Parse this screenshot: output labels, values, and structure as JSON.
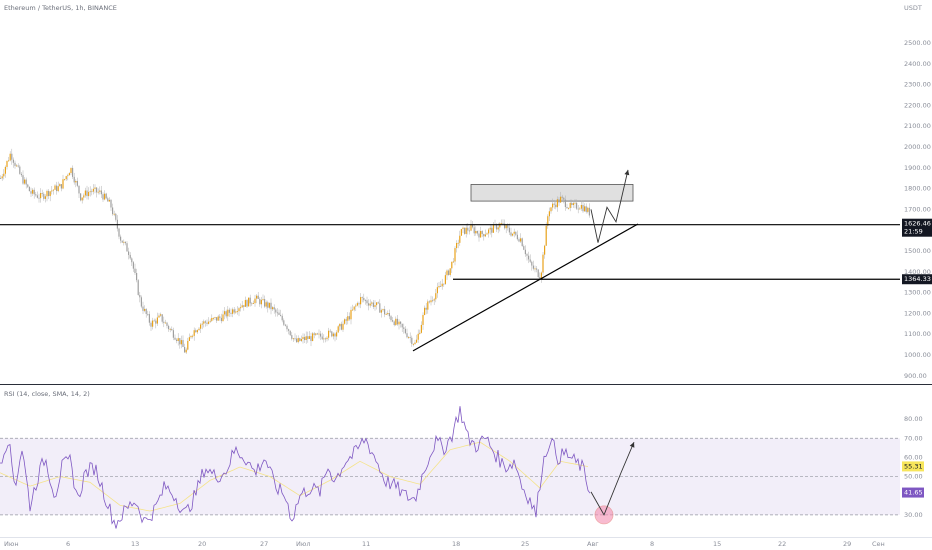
{
  "header": {
    "title": "Ethereum / TetherUS, 1h, BINANCE",
    "currency": "USDT"
  },
  "price_pane": {
    "current_price": "1626.46",
    "countdown": "21:59",
    "support_label": "1364.33"
  },
  "rsi_pane": {
    "title": "RSI (14, close, SMA, 14, 2)",
    "value_rsi": "41.65",
    "value_ma": "55.31"
  },
  "colors": {
    "candle": "#e8a21a",
    "rsi_line": "#7e57c2",
    "rsi_ma": "#f5e38a",
    "rsi_band": "#ede7f6",
    "zone_fill": "#e0e0e0",
    "highlight": "#f48fb1"
  },
  "chart_data": [
    {
      "type": "candlestick",
      "title": "Ethereum / TetherUS, 1h, BINANCE",
      "y_unit": "USDT",
      "ylim": [
        880,
        2620
      ],
      "y_ticks": [
        2500,
        2400,
        2300,
        2200,
        2100,
        2000,
        1900,
        1800,
        1700,
        1600,
        1500,
        1400,
        1300,
        1200,
        1100,
        1000,
        900
      ],
      "y_tick_labels": [
        "2500.00",
        "2400.00",
        "2300.00",
        "2200.00",
        "2100.00",
        "2000.00",
        "1900.00",
        "1800.00",
        "1700.00",
        "1600.00",
        "1500.00",
        "1400.00",
        "1300.00",
        "1200.00",
        "1100.00",
        "1000.00",
        "900.00"
      ],
      "x_tick_labels": [
        "Июн",
        "6",
        "13",
        "20",
        "27",
        "Июл",
        "11",
        "18",
        "25",
        "Авг",
        "8",
        "15",
        "22",
        "29",
        "Сен"
      ],
      "close_path": [
        [
          0,
          1850
        ],
        [
          10,
          1970
        ],
        [
          20,
          1860
        ],
        [
          30,
          1780
        ],
        [
          40,
          1760
        ],
        [
          50,
          1790
        ],
        [
          60,
          1810
        ],
        [
          70,
          1900
        ],
        [
          80,
          1760
        ],
        [
          90,
          1790
        ],
        [
          100,
          1780
        ],
        [
          110,
          1720
        ],
        [
          120,
          1560
        ],
        [
          130,
          1480
        ],
        [
          140,
          1250
        ],
        [
          150,
          1150
        ],
        [
          160,
          1180
        ],
        [
          170,
          1120
        ],
        [
          180,
          1060
        ],
        [
          185,
          1010
        ],
        [
          190,
          1100
        ],
        [
          200,
          1150
        ],
        [
          220,
          1180
        ],
        [
          240,
          1240
        ],
        [
          255,
          1270
        ],
        [
          270,
          1230
        ],
        [
          285,
          1150
        ],
        [
          295,
          1060
        ],
        [
          305,
          1080
        ],
        [
          320,
          1090
        ],
        [
          335,
          1110
        ],
        [
          345,
          1160
        ],
        [
          360,
          1270
        ],
        [
          375,
          1240
        ],
        [
          390,
          1180
        ],
        [
          405,
          1110
        ],
        [
          415,
          1050
        ],
        [
          425,
          1230
        ],
        [
          440,
          1330
        ],
        [
          450,
          1420
        ],
        [
          460,
          1590
        ],
        [
          470,
          1610
        ],
        [
          480,
          1580
        ],
        [
          490,
          1600
        ],
        [
          500,
          1630
        ],
        [
          510,
          1590
        ],
        [
          520,
          1560
        ],
        [
          530,
          1430
        ],
        [
          540,
          1380
        ],
        [
          548,
          1700
        ],
        [
          560,
          1750
        ],
        [
          570,
          1710
        ],
        [
          580,
          1720
        ],
        [
          590,
          1680
        ]
      ],
      "horizontal_levels": [
        {
          "price": 1626.46,
          "label": "1626.46"
        },
        {
          "price": 1364.33,
          "label": "1364.33"
        }
      ],
      "resistance_zone": {
        "x": [
          471,
          633
        ],
        "y": [
          1740,
          1820
        ]
      },
      "trendline": {
        "from": [
          413,
          1020
        ],
        "to": [
          638,
          1630
        ]
      },
      "projection_path": [
        [
          591,
          1700
        ],
        [
          598,
          1540
        ],
        [
          607,
          1710
        ],
        [
          616,
          1640
        ],
        [
          628,
          1890
        ]
      ]
    },
    {
      "type": "line",
      "title": "RSI (14, close, SMA, 14, 2)",
      "ylim": [
        20,
        90
      ],
      "y_ticks": [
        80,
        70,
        60,
        50,
        40,
        30
      ],
      "y_tick_labels": [
        "80.00",
        "70.00",
        "60.00",
        "50.00",
        "40.00",
        "30.00"
      ],
      "bands": [
        70,
        50,
        30
      ],
      "series": [
        {
          "values": [
            [
              0,
              58
            ],
            [
              8,
              70
            ],
            [
              15,
              45
            ],
            [
              22,
              65
            ],
            [
              30,
              35
            ],
            [
              38,
              50
            ],
            [
              45,
              60
            ],
            [
              55,
              40
            ],
            [
              62,
              55
            ],
            [
              70,
              58
            ],
            [
              78,
              38
            ],
            [
              85,
              52
            ],
            [
              95,
              55
            ],
            [
              105,
              40
            ],
            [
              115,
              25
            ],
            [
              125,
              32
            ],
            [
              135,
              38
            ],
            [
              145,
              26
            ],
            [
              155,
              33
            ],
            [
              165,
              45
            ],
            [
              175,
              40
            ],
            [
              185,
              30
            ],
            [
              195,
              40
            ],
            [
              205,
              55
            ],
            [
              215,
              50
            ],
            [
              225,
              52
            ],
            [
              235,
              64
            ],
            [
              245,
              60
            ],
            [
              255,
              52
            ],
            [
              265,
              60
            ],
            [
              275,
              45
            ],
            [
              285,
              40
            ],
            [
              292,
              28
            ],
            [
              300,
              40
            ],
            [
              310,
              44
            ],
            [
              320,
              42
            ],
            [
              328,
              55
            ],
            [
              335,
              48
            ],
            [
              345,
              58
            ],
            [
              355,
              62
            ],
            [
              365,
              70
            ],
            [
              375,
              60
            ],
            [
              385,
              48
            ],
            [
              395,
              45
            ],
            [
              405,
              40
            ],
            [
              415,
              38
            ],
            [
              425,
              55
            ],
            [
              435,
              68
            ],
            [
              445,
              65
            ],
            [
              452,
              72
            ],
            [
              460,
              85
            ],
            [
              468,
              70
            ],
            [
              476,
              66
            ],
            [
              486,
              70
            ],
            [
              495,
              62
            ],
            [
              505,
              55
            ],
            [
              515,
              58
            ],
            [
              522,
              45
            ],
            [
              530,
              38
            ],
            [
              536,
              30
            ],
            [
              542,
              55
            ],
            [
              550,
              70
            ],
            [
              558,
              60
            ],
            [
              566,
              62
            ],
            [
              574,
              58
            ],
            [
              582,
              55
            ],
            [
              590,
              42
            ]
          ]
        },
        {
          "values": [
            [
              0,
              52
            ],
            [
              30,
              45
            ],
            [
              60,
              50
            ],
            [
              90,
              47
            ],
            [
              120,
              35
            ],
            [
              150,
              32
            ],
            [
              180,
              36
            ],
            [
              210,
              48
            ],
            [
              240,
              55
            ],
            [
              270,
              50
            ],
            [
              300,
              40
            ],
            [
              330,
              48
            ],
            [
              360,
              58
            ],
            [
              390,
              50
            ],
            [
              420,
              46
            ],
            [
              450,
              64
            ],
            [
              480,
              68
            ],
            [
              510,
              58
            ],
            [
              540,
              44
            ],
            [
              560,
              58
            ],
            [
              590,
              55
            ]
          ]
        }
      ],
      "projection_path": [
        [
          591,
          42
        ],
        [
          604,
          30
        ],
        [
          621,
          52
        ],
        [
          634,
          68
        ]
      ],
      "highlight_point": [
        604,
        30
      ]
    }
  ]
}
